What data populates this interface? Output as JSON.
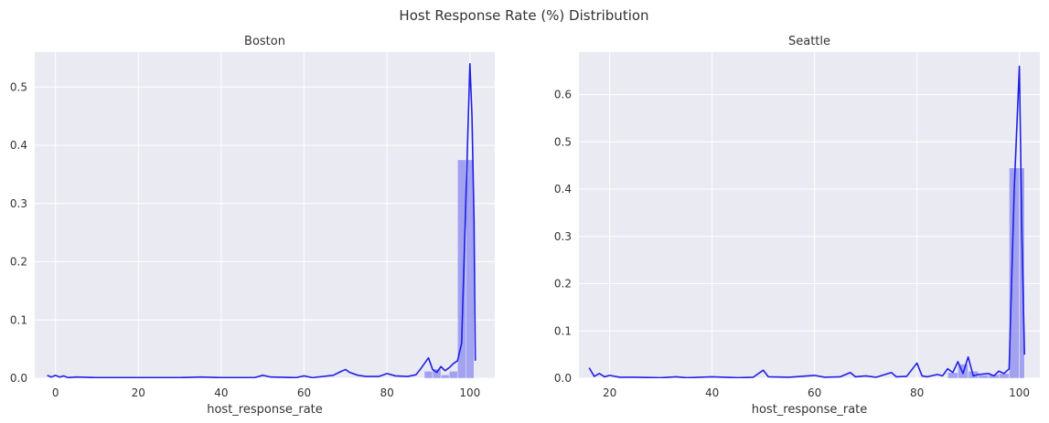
{
  "figure": {
    "title": "Host Response Rate (%) Distribution",
    "colors": {
      "background": "#eaeaf2",
      "grid": "#ffffff",
      "line": "#1f1fe6",
      "bar": "#8a8af0"
    }
  },
  "chart_data": [
    {
      "type": "histogram+kde",
      "title": "Boston",
      "xlabel": "host_response_rate",
      "ylabel": "",
      "xlim": [
        -5,
        106
      ],
      "ylim": [
        0,
        0.56
      ],
      "xticks": [
        0,
        20,
        40,
        60,
        80,
        100
      ],
      "yticks": [
        0.0,
        0.1,
        0.2,
        0.3,
        0.4,
        0.5
      ],
      "ytick_labels": [
        "0.0",
        "0.1",
        "0.2",
        "0.3",
        "0.4",
        "0.5"
      ],
      "grid": true,
      "bars": [
        {
          "x0": 89,
          "x1": 91,
          "value": 0.012
        },
        {
          "x0": 91,
          "x1": 93,
          "value": 0.016
        },
        {
          "x0": 93,
          "x1": 95,
          "value": 0.006
        },
        {
          "x0": 95,
          "x1": 97,
          "value": 0.012
        },
        {
          "x0": 97,
          "x1": 99,
          "value": 0.375
        },
        {
          "x0": 99,
          "x1": 101,
          "value": 0.375
        }
      ],
      "kde": {
        "x": [
          -2,
          -1,
          0,
          1,
          2,
          3,
          5,
          10,
          20,
          30,
          35,
          40,
          48,
          50,
          52,
          58,
          60,
          62,
          67,
          69,
          70,
          71,
          73,
          75,
          78,
          80,
          82,
          85,
          87,
          88,
          89,
          90,
          91,
          92,
          93,
          94,
          95,
          96,
          97,
          98,
          99,
          100,
          100.5,
          101,
          101.3
        ],
        "y": [
          0.005,
          0.002,
          0.005,
          0.002,
          0.004,
          0.001,
          0.002,
          0.001,
          0.001,
          0.001,
          0.002,
          0.001,
          0.001,
          0.005,
          0.002,
          0.001,
          0.004,
          0.001,
          0.005,
          0.012,
          0.015,
          0.01,
          0.005,
          0.003,
          0.003,
          0.008,
          0.004,
          0.003,
          0.006,
          0.015,
          0.025,
          0.035,
          0.015,
          0.01,
          0.02,
          0.013,
          0.018,
          0.025,
          0.03,
          0.06,
          0.3,
          0.54,
          0.45,
          0.27,
          0.03
        ]
      }
    },
    {
      "type": "histogram+kde",
      "title": "Seattle",
      "xlabel": "host_response_rate",
      "ylabel": "",
      "xlim": [
        14,
        104
      ],
      "ylim": [
        0,
        0.69
      ],
      "xticks": [
        20,
        40,
        60,
        80,
        100
      ],
      "yticks": [
        0.0,
        0.1,
        0.2,
        0.3,
        0.4,
        0.5,
        0.6
      ],
      "ytick_labels": [
        "0.0",
        "0.1",
        "0.2",
        "0.3",
        "0.4",
        "0.5",
        "0.6"
      ],
      "grid": true,
      "bars": [
        {
          "x0": 86,
          "x1": 88,
          "value": 0.012
        },
        {
          "x0": 88,
          "x1": 90,
          "value": 0.03
        },
        {
          "x0": 90,
          "x1": 92,
          "value": 0.015
        },
        {
          "x0": 92,
          "x1": 94,
          "value": 0.007
        },
        {
          "x0": 94,
          "x1": 96,
          "value": 0.008
        },
        {
          "x0": 96,
          "x1": 98,
          "value": 0.01
        },
        {
          "x0": 98,
          "x1": 100,
          "value": 0.445
        },
        {
          "x0": 100,
          "x1": 101,
          "value": 0.445
        }
      ],
      "kde": {
        "x": [
          16,
          17,
          18,
          19,
          20,
          22,
          25,
          30,
          33,
          35,
          40,
          45,
          48,
          50,
          51,
          55,
          60,
          62,
          65,
          67,
          68,
          70,
          72,
          75,
          76,
          78,
          79,
          80,
          81,
          82,
          84,
          85,
          86,
          87,
          88,
          89,
          90,
          91,
          92,
          94,
          95,
          96,
          97,
          98,
          99,
          100,
          100.5,
          101
        ],
        "y": [
          0.022,
          0.004,
          0.01,
          0.003,
          0.006,
          0.002,
          0.002,
          0.001,
          0.003,
          0.001,
          0.003,
          0.001,
          0.002,
          0.017,
          0.003,
          0.002,
          0.006,
          0.002,
          0.003,
          0.012,
          0.003,
          0.005,
          0.002,
          0.012,
          0.003,
          0.004,
          0.018,
          0.032,
          0.005,
          0.003,
          0.008,
          0.005,
          0.02,
          0.012,
          0.035,
          0.01,
          0.045,
          0.005,
          0.008,
          0.01,
          0.005,
          0.015,
          0.01,
          0.02,
          0.4,
          0.66,
          0.3,
          0.05
        ]
      }
    }
  ]
}
